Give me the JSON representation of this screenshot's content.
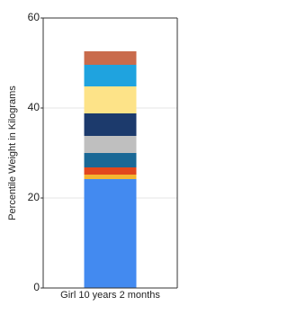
{
  "chart_data": {
    "type": "stacked-bar",
    "y_label": "Percentile Weight in Kilograms",
    "categories": [
      "Girl 10 years 2 months"
    ],
    "series": [
      {
        "color": "#438af0",
        "values": [
          24.2
        ]
      },
      {
        "color": "#f4b531",
        "values": [
          1
        ]
      },
      {
        "color": "#e2471c",
        "values": [
          1.6
        ]
      },
      {
        "color": "#1a6896",
        "values": [
          3.2
        ]
      },
      {
        "color": "#bfbfbf",
        "values": [
          3.8
        ]
      },
      {
        "color": "#1c3a6c",
        "values": [
          5
        ]
      },
      {
        "color": "#fde388",
        "values": [
          6
        ]
      },
      {
        "color": "#1fa3df",
        "values": [
          4.8
        ]
      },
      {
        "color": "#c96b4c",
        "values": [
          3
        ]
      }
    ],
    "ylim": [
      0,
      60
    ],
    "yticks": [
      0,
      20,
      40,
      60
    ],
    "grid": true
  }
}
